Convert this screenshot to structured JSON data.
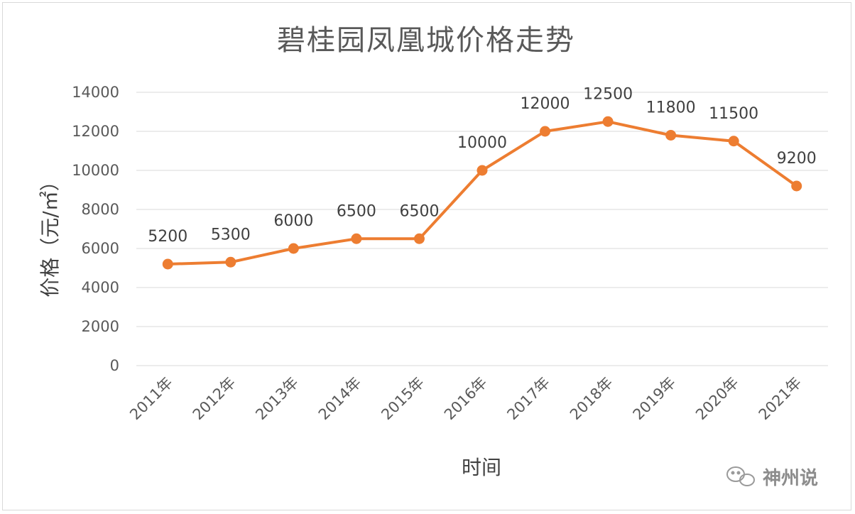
{
  "chart_data": {
    "type": "line",
    "title": "碧桂园凤凰城价格走势",
    "xlabel": "时间",
    "ylabel": "价格（元/㎡）",
    "categories": [
      "2011年",
      "2012年",
      "2013年",
      "2014年",
      "2015年",
      "2016年",
      "2017年",
      "2018年",
      "2019年",
      "2020年",
      "2021年"
    ],
    "series": [
      {
        "values": [
          5200,
          5300,
          6000,
          6500,
          6500,
          10000,
          12000,
          12500,
          11800,
          11500,
          9200
        ],
        "color": "#ed7d31"
      }
    ],
    "yticks": [
      "0",
      "2000",
      "4000",
      "6000",
      "8000",
      "10000",
      "12000",
      "14000"
    ],
    "ylim": [
      0,
      14000
    ],
    "grid": true,
    "data_labels": true
  },
  "watermark": {
    "text": "神州说",
    "icon": "wechat-icon"
  }
}
